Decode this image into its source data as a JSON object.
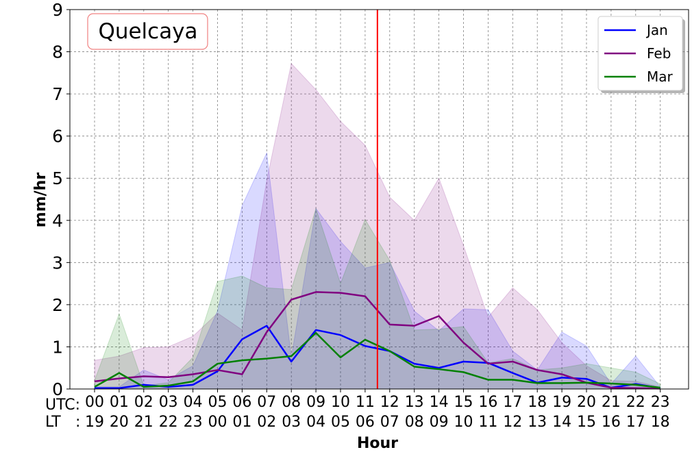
{
  "chart_data": {
    "type": "line",
    "title": "Quelcaya",
    "xlabel": "Hour",
    "ylabel": "mm/hr",
    "ylim": [
      0,
      9
    ],
    "yticks": [
      "0",
      "1",
      "2",
      "3",
      "4",
      "5",
      "6",
      "7",
      "8",
      "9"
    ],
    "utc_prefix": "UTC:",
    "lt_prefix": "LT",
    "lt_colon": ":",
    "utc_labels": [
      "00",
      "01",
      "02",
      "03",
      "04",
      "05",
      "06",
      "07",
      "08",
      "09",
      "10",
      "11",
      "12",
      "13",
      "14",
      "15",
      "16",
      "17",
      "18",
      "19",
      "20",
      "21",
      "22",
      "23"
    ],
    "lt_labels": [
      "19",
      "20",
      "21",
      "22",
      "23",
      "00",
      "01",
      "02",
      "03",
      "04",
      "05",
      "06",
      "07",
      "08",
      "09",
      "10",
      "11",
      "12",
      "13",
      "14",
      "15",
      "16",
      "17",
      "18"
    ],
    "grid": true,
    "legend_position": "top-right",
    "vertical_line_x": 11.5,
    "vertical_line_color": "#ff0000",
    "series": [
      {
        "name": "Jan",
        "color": "#0000ff",
        "values": [
          0.02,
          0.02,
          0.1,
          0.05,
          0.1,
          0.42,
          1.18,
          1.5,
          0.65,
          1.4,
          1.28,
          1.02,
          0.9,
          0.6,
          0.5,
          0.65,
          0.62,
          0.38,
          0.15,
          0.27,
          0.24,
          0.03,
          0.12,
          0.02
        ],
        "band_lower": [
          0,
          0,
          0,
          0,
          0,
          0,
          0,
          0,
          0,
          0,
          0,
          0,
          0,
          0,
          0,
          0,
          0,
          0,
          0,
          0,
          0,
          0,
          0,
          0
        ],
        "band_upper": [
          0.05,
          0.05,
          0.45,
          0.22,
          0.55,
          1.85,
          4.35,
          5.6,
          0.75,
          4.28,
          3.5,
          2.87,
          3.0,
          1.85,
          1.38,
          1.9,
          1.88,
          0.9,
          0.45,
          1.35,
          1.02,
          0.12,
          0.78,
          0.05
        ]
      },
      {
        "name": "Feb",
        "color": "#800080",
        "values": [
          0.18,
          0.25,
          0.3,
          0.28,
          0.35,
          0.45,
          0.35,
          1.35,
          2.12,
          2.3,
          2.28,
          2.2,
          1.53,
          1.5,
          1.73,
          1.1,
          0.6,
          0.65,
          0.45,
          0.35,
          0.15,
          0.03,
          0.02,
          0.01
        ],
        "band_lower": [
          0,
          0,
          0,
          0,
          0,
          0,
          0,
          0,
          0,
          0,
          0,
          0,
          0,
          0,
          0,
          0,
          0,
          0,
          0,
          0,
          0,
          0,
          0,
          0
        ],
        "band_upper": [
          0.68,
          0.78,
          0.98,
          1.0,
          1.25,
          1.8,
          1.4,
          4.95,
          7.72,
          7.1,
          6.35,
          5.78,
          4.55,
          4.0,
          5.0,
          3.4,
          1.7,
          2.4,
          1.88,
          1.1,
          0.55,
          0.2,
          0.18,
          0.05
        ]
      },
      {
        "name": "Mar",
        "color": "#008000",
        "values": [
          0.05,
          0.38,
          0.05,
          0.08,
          0.18,
          0.6,
          0.68,
          0.72,
          0.78,
          1.33,
          0.75,
          1.17,
          0.9,
          0.53,
          0.47,
          0.4,
          0.22,
          0.22,
          0.14,
          0.14,
          0.15,
          0.13,
          0.1,
          0.03
        ],
        "band_lower": [
          0,
          0,
          0,
          0,
          0,
          0,
          0,
          0,
          0,
          0,
          0,
          0,
          0,
          0,
          0,
          0,
          0,
          0,
          0,
          0,
          0,
          0,
          0,
          0
        ],
        "band_upper": [
          0.2,
          1.78,
          0.08,
          0.15,
          0.75,
          2.55,
          2.68,
          2.4,
          2.36,
          4.28,
          2.5,
          4.02,
          3.05,
          1.4,
          1.42,
          1.48,
          0.62,
          0.72,
          0.45,
          0.5,
          0.6,
          0.5,
          0.4,
          0.12
        ]
      }
    ]
  }
}
